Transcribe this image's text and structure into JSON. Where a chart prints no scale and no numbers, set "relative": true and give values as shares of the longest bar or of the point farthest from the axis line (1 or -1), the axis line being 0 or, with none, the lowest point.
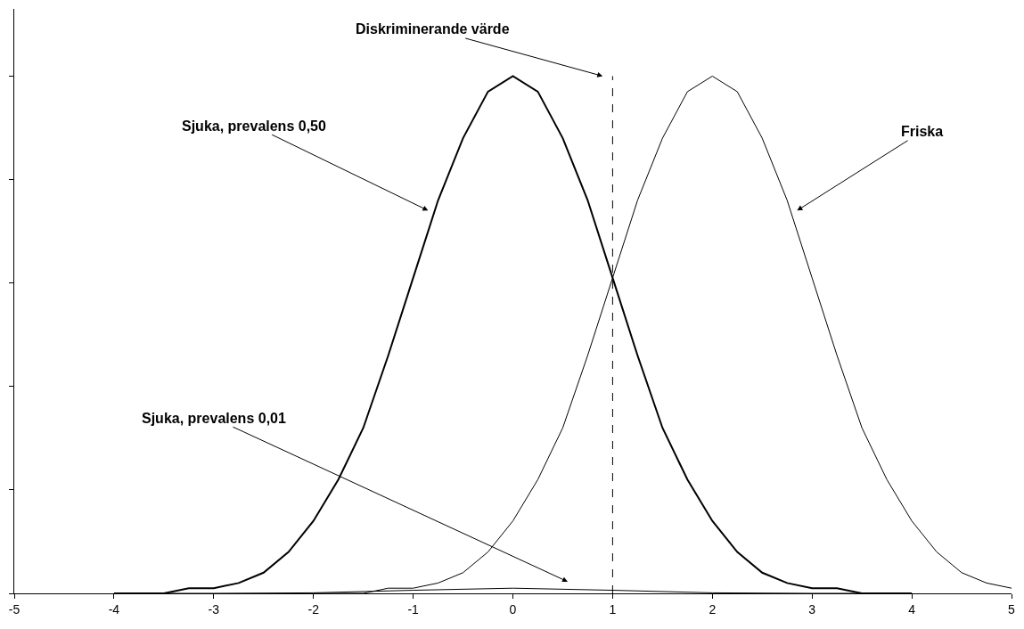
{
  "chart_data": {
    "type": "line",
    "relative": true,
    "marker": "none",
    "xlim": [
      -5,
      5
    ],
    "xticks": [
      -5,
      -4,
      -3,
      -2,
      -1,
      0,
      1,
      2,
      3,
      4,
      5
    ],
    "series": [
      {
        "color": "#000000",
        "x": [
          -4,
          -3.75,
          -3.5,
          -3.25,
          -3,
          -2.75,
          -2.5,
          -2.25,
          -2,
          -1.75,
          -1.5,
          -1.25,
          -1,
          -0.75,
          -0.5,
          -0.25,
          0,
          0.25,
          0.5,
          0.75,
          1,
          1.25,
          1.5,
          1.75,
          2,
          2.25,
          2.5,
          2.75,
          3,
          3.25,
          3.5,
          3.75,
          4
        ],
        "values": [
          0,
          0,
          0,
          0.01,
          0.01,
          0.02,
          0.04,
          0.08,
          0.14,
          0.22,
          0.32,
          0.46,
          0.61,
          0.76,
          0.88,
          0.97,
          1,
          0.97,
          0.88,
          0.76,
          0.61,
          0.46,
          0.32,
          0.22,
          0.14,
          0.08,
          0.04,
          0.02,
          0.01,
          0.01,
          0,
          0,
          0
        ]
      },
      {
        "color": "#000000",
        "x": [
          -2,
          -1.75,
          -1.5,
          -1.25,
          -1,
          -0.75,
          -0.5,
          -0.25,
          0,
          0.25,
          0.5,
          0.75,
          1,
          1.25,
          1.5,
          1.75,
          2,
          2.25,
          2.5,
          2.75,
          3,
          3.25,
          3.5,
          3.75,
          4,
          4.25,
          4.5,
          4.75,
          5
        ],
        "values": [
          0,
          0,
          0,
          0.01,
          0.01,
          0.02,
          0.04,
          0.08,
          0.14,
          0.22,
          0.32,
          0.46,
          0.61,
          0.76,
          0.88,
          0.97,
          1,
          0.97,
          0.88,
          0.76,
          0.61,
          0.46,
          0.32,
          0.22,
          0.14,
          0.08,
          0.04,
          0.02,
          0.01
        ]
      },
      {
        "color": "#000000",
        "x": [
          -4,
          -3,
          -2,
          -1,
          0,
          1,
          2,
          3,
          4
        ],
        "values": [
          0,
          0,
          0.001,
          0.006,
          0.01,
          0.006,
          0.001,
          0,
          0
        ]
      }
    ],
    "ref_lines": [
      {
        "axis": "x",
        "value": 1,
        "color": "#000000",
        "line_style": "dashed"
      }
    ],
    "annotations": [
      "Diskriminerande värde",
      "Sjuka, prevalens 0,50",
      "Friska",
      "Sjuka, prevalens 0,01"
    ]
  }
}
